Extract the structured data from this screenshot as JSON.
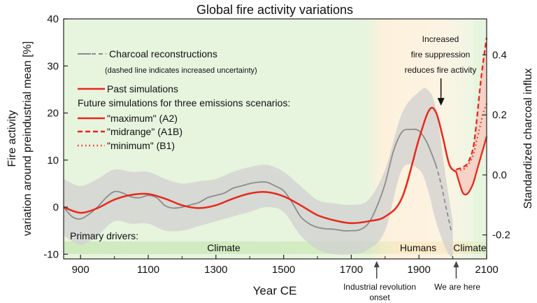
{
  "chart_data": {
    "type": "line",
    "title": "Global fire activity variations",
    "xlabel": "Year CE",
    "ylabel_left_line1": "Fire activity",
    "ylabel_left_line2": "variation around preindustrial mean [%]",
    "ylabel_right": "Standardized charcoal influx",
    "xlim": [
      850,
      2100
    ],
    "ylim_left": [
      -11,
      40
    ],
    "ylim_right": [
      -0.28,
      0.52
    ],
    "x_ticks": [
      900,
      1100,
      1300,
      1500,
      1700,
      1900,
      2100
    ],
    "x_minor_ticks": [
      1000,
      1200,
      1400,
      1600,
      1800,
      2000
    ],
    "y_left_ticks": [
      -10,
      0,
      10,
      20,
      30,
      40
    ],
    "y_right_ticks": [
      -0.2,
      0.0,
      0.2,
      0.4
    ],
    "y_right_tick_labels": [
      "-0.2",
      "0.0",
      "0.2",
      "0.4"
    ],
    "legend": {
      "charcoal": "Charcoal reconstructions",
      "charcoal_note": "(dashed line indicates increased uncertainty)",
      "past": "Past simulations",
      "future_header": "Future simulations for three emissions scenarios:",
      "maximum": "\"maximum\" (A2)",
      "midrange": "\"midrange\" (A1B)",
      "minimum": "\"minimum\" (B1)"
    },
    "annotations": {
      "suppression_line1": "Increased",
      "suppression_line2": "fire suppression",
      "suppression_line3": "reduces fire activity",
      "industrial_line1": "Industrial revolution",
      "industrial_line2": "onset",
      "here": "We are here"
    },
    "drivers": {
      "label": "Primary drivers:",
      "climate1": "Climate",
      "humans": "Humans",
      "climate2": "Climate"
    },
    "marker_years": {
      "industrial": 1775,
      "here": 2010,
      "suppression": 1965
    },
    "colors": {
      "simulation": "#e8281b",
      "charcoal": "#8c8c8c",
      "charcoal_band": "#d0d0d0",
      "climate_bg": "#e7f4de",
      "human_bg": "#fdf1dc",
      "future_band": "#f7c9bf"
    },
    "series": {
      "past_simulation": {
        "name": "Past simulations",
        "x": [
          850,
          900,
          950,
          1000,
          1050,
          1100,
          1150,
          1200,
          1250,
          1300,
          1350,
          1400,
          1450,
          1500,
          1550,
          1600,
          1650,
          1700,
          1750,
          1800,
          1850,
          1900,
          1930,
          1950,
          1970,
          1990,
          2010
        ],
        "y": [
          0,
          -1.2,
          -0.2,
          1.6,
          2.6,
          2.8,
          1.8,
          0.4,
          -0.2,
          0.4,
          1.8,
          2.9,
          3.2,
          2.3,
          0.4,
          -1.7,
          -2.8,
          -3.4,
          -3.0,
          -2.0,
          2.0,
          14.5,
          20.6,
          20.2,
          15.0,
          9.0,
          7.5
        ]
      },
      "charcoal": {
        "name": "Charcoal reconstructions",
        "x": [
          850,
          875,
          900,
          925,
          950,
          975,
          1000,
          1025,
          1050,
          1075,
          1100,
          1125,
          1150,
          1175,
          1200,
          1225,
          1250,
          1275,
          1300,
          1325,
          1350,
          1375,
          1400,
          1425,
          1450,
          1475,
          1500,
          1525,
          1550,
          1575,
          1600,
          1625,
          1650,
          1675,
          1700,
          1725,
          1750,
          1775,
          1800,
          1825,
          1850,
          1875,
          1900,
          1925,
          1950
        ],
        "y": [
          0,
          -2,
          -2.5,
          -1.5,
          0,
          2,
          3.3,
          3,
          2.2,
          2,
          2.5,
          2,
          0.3,
          -0.2,
          0,
          0.5,
          1,
          2,
          2.5,
          3,
          4,
          4.5,
          5,
          5.3,
          5.3,
          4.5,
          3.5,
          1,
          -2,
          -3.5,
          -4.3,
          -4.6,
          -4.7,
          -5,
          -5,
          -4.8,
          -3.5,
          0,
          5,
          12,
          16,
          16.5,
          16.2,
          13.5,
          9.0
        ]
      },
      "charcoal_uncertain": {
        "x": [
          1950,
          1965,
          1980,
          1995
        ],
        "y": [
          9.0,
          5.0,
          0,
          -5.0
        ]
      },
      "charcoal_band_upper": {
        "x": [
          850,
          900,
          950,
          1000,
          1050,
          1100,
          1150,
          1200,
          1250,
          1300,
          1350,
          1400,
          1450,
          1500,
          1550,
          1600,
          1650,
          1700,
          1750,
          1800,
          1850,
          1900,
          1925,
          1950,
          1980,
          2000
        ],
        "y": [
          6,
          4.5,
          6,
          8,
          7.5,
          7.5,
          6,
          5,
          5.5,
          6,
          7.5,
          8.5,
          9,
          7.5,
          4.5,
          1.5,
          0.8,
          0.5,
          1.5,
          8,
          20,
          24.5,
          25,
          21,
          6,
          -3
        ]
      },
      "charcoal_band_lower": {
        "x": [
          850,
          900,
          950,
          1000,
          1050,
          1100,
          1150,
          1200,
          1250,
          1300,
          1350,
          1400,
          1450,
          1500,
          1550,
          1600,
          1650,
          1700,
          1750,
          1800,
          1850,
          1900,
          1925,
          1950,
          1980,
          2000
        ],
        "y": [
          -6,
          -8,
          -6,
          -3,
          -3.5,
          -3.5,
          -5,
          -5,
          -4,
          -3,
          -2,
          -1,
          0,
          -1,
          -6,
          -9,
          -10,
          -10,
          -9,
          -5,
          8,
          8,
          4,
          -3,
          -9,
          -11
        ]
      },
      "future_maximum": {
        "name": "\"maximum\" (A2)",
        "x": [
          2010,
          2020,
          2030,
          2040,
          2050,
          2060,
          2070,
          2080,
          2090,
          2100
        ],
        "y": [
          7.5,
          5.0,
          3.0,
          2.7,
          3.5,
          5.0,
          7.5,
          10.0,
          12.5,
          15.0
        ]
      },
      "future_midrange": {
        "name": "\"midrange\" (A1B)",
        "x": [
          2010,
          2030,
          2045,
          2060,
          2070,
          2080,
          2090,
          2100
        ],
        "y": [
          8.0,
          8.5,
          9.5,
          12.5,
          18.0,
          25.0,
          31.0,
          36.0
        ]
      },
      "future_minimum": {
        "name": "\"minimum\" (B1)",
        "x": [
          2010,
          2030,
          2045,
          2060,
          2070,
          2080,
          2090,
          2100
        ],
        "y": [
          8.0,
          8.0,
          9.0,
          11.0,
          14.0,
          17.0,
          20.0,
          22.0
        ]
      }
    }
  }
}
